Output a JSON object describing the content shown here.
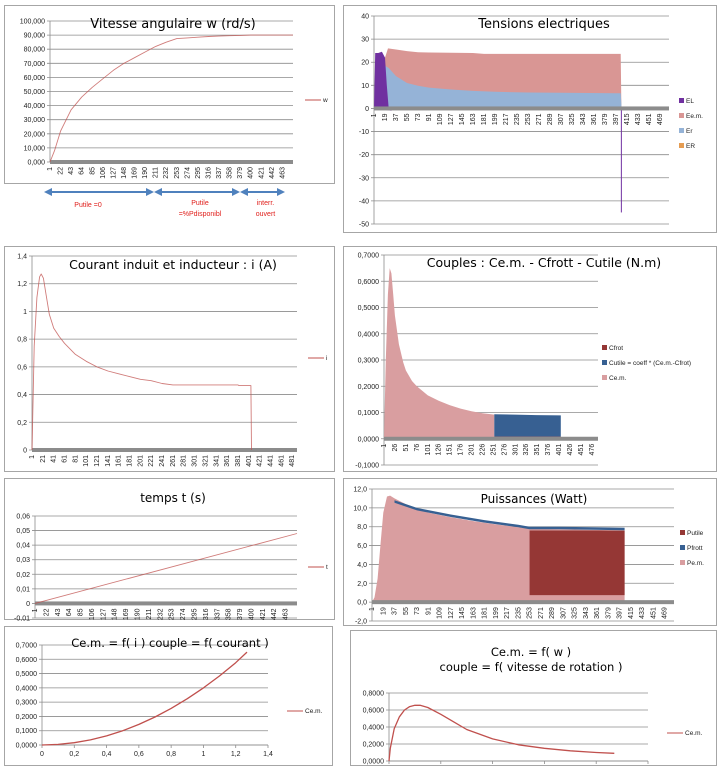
{
  "annotations": {
    "phase1": "Putile =0",
    "phase2_l1": "Putile",
    "phase2_l2": "=%Pdisponibl",
    "phase3_l1": "interr.",
    "phase3_l2": "ouvert",
    "arrow_color": "#4f81bd",
    "text_color": "#e0201c"
  },
  "chart_data": [
    {
      "id": "vitesse",
      "type": "line",
      "title": "Vitesse angulaire w (rd/s)",
      "xlabel": "",
      "ylabel": "",
      "ylim": [
        0,
        100
      ],
      "yticks": [
        "0,000",
        "10,000",
        "20,000",
        "30,000",
        "40,000",
        "50,000",
        "60,000",
        "70,000",
        "80,000",
        "90,000",
        "100,000"
      ],
      "xticks": [
        "1",
        "22",
        "43",
        "64",
        "85",
        "106",
        "127",
        "148",
        "169",
        "190",
        "211",
        "232",
        "253",
        "274",
        "295",
        "316",
        "337",
        "358",
        "379",
        "400",
        "421",
        "442",
        "463"
      ],
      "xrange": [
        1,
        484
      ],
      "grid": true,
      "legend": "right",
      "series": [
        {
          "name": "w",
          "color": "#c0504d",
          "x": [
            1,
            10,
            22,
            43,
            64,
            85,
            106,
            127,
            148,
            169,
            190,
            211,
            232,
            253,
            274,
            295,
            316,
            337,
            358,
            379,
            400,
            421,
            442,
            463,
            484
          ],
          "y": [
            0,
            8,
            22,
            37,
            46,
            53,
            59,
            65,
            70,
            74,
            78,
            82,
            85,
            87.5,
            88,
            88.5,
            89,
            89.3,
            89.6,
            89.8,
            90,
            90,
            90,
            90,
            90
          ]
        }
      ]
    },
    {
      "id": "tensions",
      "type": "area",
      "title": "Tensions electriques",
      "ylim": [
        -50,
        40
      ],
      "yticks": [
        "-50",
        "-40",
        "-30",
        "-20",
        "-10",
        "0",
        "10",
        "20",
        "30",
        "40"
      ],
      "xticks": [
        "1",
        "19",
        "37",
        "55",
        "73",
        "91",
        "109",
        "127",
        "145",
        "163",
        "181",
        "199",
        "217",
        "235",
        "253",
        "271",
        "289",
        "307",
        "325",
        "343",
        "361",
        "379",
        "397",
        "415",
        "433",
        "451",
        "469"
      ],
      "xrange": [
        1,
        484
      ],
      "grid": true,
      "legend": "right",
      "series": [
        {
          "name": "EL",
          "color": "#7030a0",
          "x": [
            1,
            3,
            8,
            14,
            19,
            22,
            25,
            30,
            405,
            406,
            406.5
          ],
          "y": [
            0,
            24,
            24,
            24.5,
            22,
            10,
            0,
            -1,
            0,
            -45,
            0
          ]
        },
        {
          "name": "Ee.m.",
          "color": "#d99694",
          "x": [
            1,
            10,
            19,
            24,
            37,
            55,
            73,
            91,
            127,
            163,
            181,
            253,
            343,
            405,
            406
          ],
          "y": [
            0,
            12,
            22,
            26,
            25.5,
            24.8,
            24.3,
            24.2,
            24.1,
            24,
            23.6,
            23.6,
            23.6,
            23.6,
            0
          ]
        },
        {
          "name": "Er",
          "color": "#95b3d7",
          "x": [
            1,
            5,
            10,
            15,
            19,
            25,
            37,
            55,
            73,
            91,
            127,
            163,
            199,
            253,
            307,
            397,
            405,
            406
          ],
          "y": [
            0,
            10,
            15,
            17.5,
            18.5,
            17.5,
            14,
            11,
            9.8,
            9,
            8.2,
            7.6,
            7.2,
            6.9,
            6.8,
            6.6,
            6.6,
            2
          ]
        },
        {
          "name": "ER",
          "color": "#e59c52",
          "x": [],
          "y": []
        }
      ]
    },
    {
      "id": "courant",
      "type": "line",
      "title": "Courant induit et inducteur : i (A)",
      "ylim": [
        0,
        1.4
      ],
      "yticks": [
        "0",
        "0,2",
        "0,4",
        "0,6",
        "0,8",
        "1",
        "1,2",
        "1,4"
      ],
      "xticks": [
        "1",
        "21",
        "41",
        "61",
        "81",
        "101",
        "121",
        "141",
        "161",
        "181",
        "201",
        "221",
        "241",
        "261",
        "281",
        "301",
        "321",
        "341",
        "361",
        "381",
        "401",
        "421",
        "441",
        "461",
        "481"
      ],
      "xrange": [
        1,
        490
      ],
      "grid": true,
      "legend": "right",
      "series": [
        {
          "name": "i",
          "color": "#c0504d",
          "x": [
            1,
            5,
            10,
            15,
            18,
            22,
            27,
            33,
            41,
            51,
            61,
            81,
            101,
            121,
            141,
            161,
            181,
            201,
            221,
            241,
            261,
            281,
            301,
            341,
            381,
            383,
            405,
            406
          ],
          "y": [
            0,
            0.75,
            1.1,
            1.25,
            1.27,
            1.24,
            1.12,
            0.98,
            0.88,
            0.82,
            0.77,
            0.69,
            0.64,
            0.6,
            0.57,
            0.55,
            0.53,
            0.51,
            0.5,
            0.48,
            0.47,
            0.47,
            0.47,
            0.47,
            0.47,
            0.465,
            0.465,
            0
          ]
        }
      ]
    },
    {
      "id": "couples",
      "type": "area",
      "title": "Couples : Ce.m. - Cfrott - Cutile (N.m)",
      "ylim": [
        -0.1,
        0.7
      ],
      "yticks": [
        "-0,1000",
        "0,0000",
        "0,1000",
        "0,2000",
        "0,3000",
        "0,4000",
        "0,5000",
        "0,6000",
        "0,7000"
      ],
      "xticks": [
        "1",
        "26",
        "51",
        "76",
        "101",
        "126",
        "151",
        "176",
        "201",
        "226",
        "251",
        "276",
        "301",
        "326",
        "351",
        "376",
        "401",
        "426",
        "451",
        "476"
      ],
      "xrange": [
        1,
        490
      ],
      "grid": true,
      "legend": "right",
      "series": [
        {
          "name": "Cfrot",
          "color": "#953735",
          "x": [
            253,
            405
          ],
          "y": [
            0.008,
            0.008
          ]
        },
        {
          "name": "Cutile = coeff * (Ce.m.-Cfrot)",
          "color": "#376092",
          "x": [
            253,
            300,
            350,
            405
          ],
          "y": [
            0.093,
            0.092,
            0.09,
            0.089
          ]
        },
        {
          "name": "Ce.m.",
          "color": "#d99ea0",
          "x": [
            1,
            5,
            10,
            14,
            18,
            22,
            26,
            35,
            45,
            51,
            65,
            76,
            101,
            126,
            151,
            176,
            201,
            226,
            253
          ],
          "y": [
            0,
            0.3,
            0.55,
            0.65,
            0.63,
            0.55,
            0.47,
            0.36,
            0.29,
            0.26,
            0.22,
            0.2,
            0.165,
            0.145,
            0.128,
            0.115,
            0.105,
            0.097,
            0.092
          ]
        }
      ]
    },
    {
      "id": "temps",
      "type": "line",
      "title": "temps t (s)",
      "ylim": [
        -0.01,
        0.06
      ],
      "yticks": [
        "-0,01",
        "0",
        "0,01",
        "0,02",
        "0,03",
        "0,04",
        "0,05",
        "0,06"
      ],
      "xticks": [
        "1",
        "22",
        "43",
        "64",
        "85",
        "106",
        "127",
        "148",
        "169",
        "190",
        "211",
        "232",
        "253",
        "274",
        "295",
        "316",
        "337",
        "358",
        "379",
        "400",
        "421",
        "442",
        "463"
      ],
      "xrange": [
        1,
        484
      ],
      "grid": true,
      "legend": "right",
      "series": [
        {
          "name": "t",
          "color": "#c0504d",
          "x": [
            1,
            484
          ],
          "y": [
            0,
            0.048
          ]
        }
      ]
    },
    {
      "id": "puissances",
      "type": "area",
      "title": "Puissances  (Watt)",
      "ylim": [
        -2,
        12
      ],
      "yticks": [
        "-2,0",
        "0,0",
        "2,0",
        "4,0",
        "6,0",
        "8,0",
        "10,0",
        "12,0"
      ],
      "xticks": [
        "1",
        "19",
        "37",
        "55",
        "73",
        "91",
        "109",
        "127",
        "145",
        "163",
        "181",
        "199",
        "217",
        "235",
        "253",
        "271",
        "289",
        "307",
        "325",
        "343",
        "361",
        "379",
        "397",
        "415",
        "433",
        "451",
        "469"
      ],
      "xrange": [
        1,
        484
      ],
      "grid": true,
      "legend": "right",
      "series": [
        {
          "name": "Putile",
          "color": "#953735",
          "x": [
            253,
            405
          ],
          "y": [
            7.6,
            7.6
          ]
        },
        {
          "name": "Pfrott",
          "color": "#376092",
          "x": [
            37,
            73,
            127,
            181,
            235,
            253,
            300,
            405
          ],
          "y": [
            10.8,
            10.0,
            9.3,
            8.7,
            8.2,
            8.0,
            8.0,
            7.9
          ]
        },
        {
          "name": "Pe.m.",
          "color": "#d99ea0",
          "x": [
            1,
            5,
            10,
            15,
            19,
            25,
            30,
            37,
            55,
            73,
            91,
            127,
            163,
            199,
            235,
            253,
            405
          ],
          "y": [
            0,
            0.5,
            2.5,
            6.5,
            9.5,
            11.2,
            11.3,
            11.0,
            10.4,
            9.9,
            9.5,
            9.0,
            8.6,
            8.25,
            7.95,
            7.8,
            7.6
          ]
        }
      ]
    },
    {
      "id": "cem_i",
      "type": "line",
      "title": "Ce.m. = f( i )  couple = f( courant )",
      "xlim": [
        0,
        1.4
      ],
      "ylim": [
        0,
        0.7
      ],
      "xticks": [
        "0",
        "0,2",
        "0,4",
        "0,6",
        "0,8",
        "1",
        "1,2",
        "1,4"
      ],
      "yticks": [
        "0,0000",
        "0,1000",
        "0,2000",
        "0,3000",
        "0,4000",
        "0,5000",
        "0,6000",
        "0,7000"
      ],
      "grid": true,
      "legend": "right",
      "series": [
        {
          "name": "Ce.m.",
          "color": "#c0504d",
          "x": [
            0,
            0.1,
            0.2,
            0.3,
            0.4,
            0.5,
            0.6,
            0.7,
            0.8,
            0.9,
            1.0,
            1.1,
            1.2,
            1.27
          ],
          "y": [
            0,
            0.004,
            0.016,
            0.036,
            0.064,
            0.1,
            0.144,
            0.196,
            0.256,
            0.324,
            0.4,
            0.484,
            0.576,
            0.65
          ]
        }
      ]
    },
    {
      "id": "cem_w",
      "type": "line",
      "title": "Ce.m. = f( w )",
      "subtitle": "couple = f( vitesse de rotation )",
      "xlim": [
        0,
        100
      ],
      "ylim": [
        0,
        0.8
      ],
      "xticks": [
        "0,000",
        "20,000",
        "40,000",
        "60,000",
        "80,000",
        "100,000"
      ],
      "yticks": [
        "0,0000",
        "0,2000",
        "0,4000",
        "0,6000",
        "0,8000"
      ],
      "grid": true,
      "legend": "right",
      "series": [
        {
          "name": "Ce.m.",
          "color": "#c0504d",
          "x": [
            0,
            0.5,
            2,
            4,
            6,
            8,
            10,
            12,
            15,
            20,
            25,
            30,
            40,
            50,
            60,
            70,
            80,
            87
          ],
          "y": [
            0,
            0.15,
            0.38,
            0.52,
            0.6,
            0.64,
            0.655,
            0.655,
            0.63,
            0.55,
            0.46,
            0.37,
            0.26,
            0.19,
            0.15,
            0.12,
            0.1,
            0.09
          ]
        }
      ]
    }
  ]
}
